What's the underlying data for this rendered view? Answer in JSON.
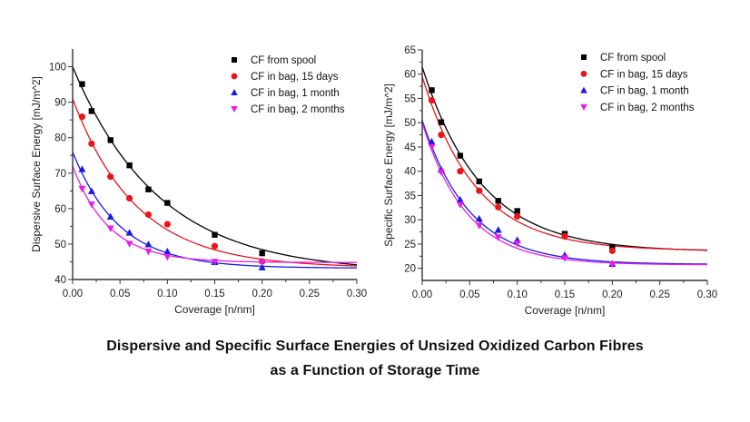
{
  "caption": {
    "line1": "Dispersive and Specific Surface Energies of Unsized Oxidized Carbon Fibres",
    "line2": "as a Function of Storage Time"
  },
  "chart_data": [
    {
      "type": "scatter",
      "title": "",
      "xlabel": "Coverage [n/nm]",
      "ylabel": "Dispersive Surface Energy [mJ/m^2]",
      "xlim": [
        0,
        0.3
      ],
      "ylim": [
        40,
        105
      ],
      "xticks": [
        "0.00",
        "0.05",
        "0.10",
        "0.15",
        "0.20",
        "0.25",
        "0.30"
      ],
      "yticks": [
        "40",
        "50",
        "60",
        "70",
        "80",
        "90",
        "100"
      ],
      "grid": false,
      "legend_position": "top-right",
      "x": [
        0.01,
        0.02,
        0.04,
        0.06,
        0.08,
        0.1,
        0.15,
        0.2
      ],
      "series": [
        {
          "name": "CF from spool",
          "color": "#000000",
          "marker": "square",
          "values": [
            95.1,
            87.5,
            79.3,
            72.2,
            65.4,
            61.6,
            52.6,
            47.4
          ],
          "fit": {
            "start": 100,
            "asymptote": 42,
            "decay": 0.091
          }
        },
        {
          "name": "CF in bag, 15 days",
          "color": "#e8151b",
          "marker": "circle",
          "values": [
            85.9,
            78.3,
            69.0,
            62.9,
            58.3,
            55.6,
            49.4,
            45.1
          ],
          "fit": {
            "start": 91,
            "asymptote": 43.3,
            "decay": 0.067
          }
        },
        {
          "name": "CF in bag, 1 month",
          "color": "#1a1ae6",
          "marker": "triangle-up",
          "values": [
            71.1,
            64.9,
            57.7,
            53.2,
            49.9,
            47.9,
            44.9,
            43.4
          ],
          "fit": {
            "start": 76,
            "asymptote": 43.2,
            "decay": 0.049
          }
        },
        {
          "name": "CF in bag, 2 months",
          "color": "#e61ee6",
          "marker": "triangle-down",
          "values": [
            65.6,
            61.2,
            54.4,
            50.1,
            47.9,
            46.4,
            45.0,
            44.9
          ],
          "fit": {
            "start": 72,
            "asymptote": 44.8,
            "decay": 0.0385
          }
        }
      ]
    },
    {
      "type": "scatter",
      "title": "",
      "xlabel": "Coverage [n/nm]",
      "ylabel": "Specific Surface Energy [mJ/m^2]",
      "xlim": [
        0,
        0.3
      ],
      "ylim": [
        17.5,
        65
      ],
      "xticks": [
        "0.00",
        "0.05",
        "0.10",
        "0.15",
        "0.20",
        "0.25",
        "0.30"
      ],
      "yticks": [
        "20",
        "25",
        "30",
        "35",
        "40",
        "45",
        "50",
        "55",
        "60",
        "65"
      ],
      "grid": false,
      "legend_position": "top-right",
      "x": [
        0.01,
        0.02,
        0.04,
        0.06,
        0.08,
        0.1,
        0.15,
        0.2
      ],
      "series": [
        {
          "name": "CF from spool",
          "color": "#000000",
          "marker": "square",
          "values": [
            56.7,
            50.1,
            43.2,
            37.9,
            33.9,
            31.8,
            27.1,
            24.3
          ],
          "fit": {
            "start": 61.5,
            "asymptote": 23.4,
            "decay": 0.0622
          }
        },
        {
          "name": "CF in bag, 15 days",
          "color": "#e8151b",
          "marker": "circle",
          "values": [
            54.6,
            47.5,
            40.0,
            36.0,
            32.6,
            30.7,
            26.6,
            23.6
          ],
          "fit": {
            "start": 59.5,
            "asymptote": 23.6,
            "decay": 0.0564
          }
        },
        {
          "name": "CF in bag, 1 month",
          "color": "#1a1ae6",
          "marker": "triangle-up",
          "values": [
            46.1,
            40.3,
            34.1,
            30.2,
            27.9,
            25.8,
            22.7,
            20.9
          ],
          "fit": {
            "start": 50.5,
            "asymptote": 20.8,
            "decay": 0.0498
          }
        },
        {
          "name": "CF in bag, 2 months",
          "color": "#e61ee6",
          "marker": "triangle-down",
          "values": [
            45.0,
            39.8,
            33.1,
            28.8,
            26.4,
            25.1,
            22.1,
            20.8
          ],
          "fit": {
            "start": 50,
            "asymptote": 20.7,
            "decay": 0.0465
          }
        }
      ]
    }
  ]
}
